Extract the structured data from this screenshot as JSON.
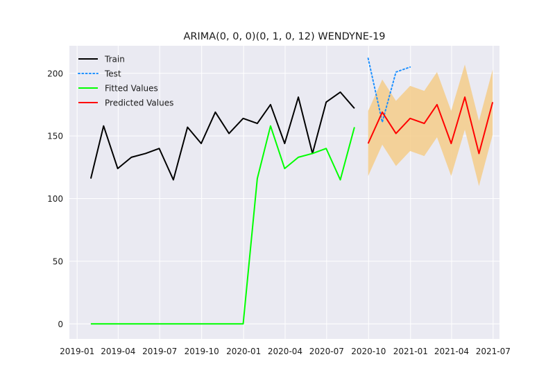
{
  "chart_data": {
    "type": "line",
    "title": "ARIMA(0, 0, 0)(0, 1, 0, 12) WENDYNE-19",
    "xlabel": "",
    "ylabel": "",
    "x_axis_type": "date",
    "xlim": [
      "2018-12-15",
      "2021-07-15"
    ],
    "ylim": [
      -12,
      222
    ],
    "xticks": [
      {
        "date": "2019-01-01",
        "label": "2019-01"
      },
      {
        "date": "2019-04-01",
        "label": "2019-04"
      },
      {
        "date": "2019-07-01",
        "label": "2019-07"
      },
      {
        "date": "2019-10-01",
        "label": "2019-10"
      },
      {
        "date": "2020-01-01",
        "label": "2020-01"
      },
      {
        "date": "2020-04-01",
        "label": "2020-04"
      },
      {
        "date": "2020-07-01",
        "label": "2020-07"
      },
      {
        "date": "2020-10-01",
        "label": "2020-10"
      },
      {
        "date": "2021-01-01",
        "label": "2021-01"
      },
      {
        "date": "2021-04-01",
        "label": "2021-04"
      },
      {
        "date": "2021-07-01",
        "label": "2021-07"
      }
    ],
    "yticks": [
      0,
      50,
      100,
      150,
      200
    ],
    "grid": true,
    "legend_position": "top-left",
    "background": "#eaeaf2",
    "series": [
      {
        "name": "Train",
        "color": "#000000",
        "style": "solid",
        "x": [
          "2019-01-31",
          "2019-02-28",
          "2019-03-31",
          "2019-04-30",
          "2019-05-31",
          "2019-06-30",
          "2019-07-31",
          "2019-08-31",
          "2019-09-30",
          "2019-10-31",
          "2019-11-30",
          "2019-12-31",
          "2020-01-31",
          "2020-02-29",
          "2020-03-31",
          "2020-04-30",
          "2020-05-31",
          "2020-06-30",
          "2020-07-31",
          "2020-08-31"
        ],
        "values": [
          116,
          158,
          124,
          133,
          136,
          140,
          115,
          157,
          144,
          169,
          152,
          164,
          160,
          175,
          144,
          181,
          136,
          177,
          185,
          172
        ]
      },
      {
        "name": "Test",
        "color": "#1e90ff",
        "style": "dotted",
        "x": [
          "2020-09-30",
          "2020-10-31",
          "2020-11-30",
          "2020-12-31"
        ],
        "values": [
          212,
          161,
          201,
          205
        ]
      },
      {
        "name": "Fitted Values",
        "color": "#00ff00",
        "style": "solid",
        "x": [
          "2019-01-31",
          "2019-02-28",
          "2019-03-31",
          "2019-04-30",
          "2019-05-31",
          "2019-06-30",
          "2019-07-31",
          "2019-08-31",
          "2019-09-30",
          "2019-10-31",
          "2019-11-30",
          "2019-12-31",
          "2020-01-31",
          "2020-02-29",
          "2020-03-31",
          "2020-04-30",
          "2020-05-31",
          "2020-06-30",
          "2020-07-31",
          "2020-08-31"
        ],
        "values": [
          0,
          0,
          0,
          0,
          0,
          0,
          0,
          0,
          0,
          0,
          0,
          0,
          116,
          158,
          124,
          133,
          136,
          140,
          115,
          157
        ]
      },
      {
        "name": "Predicted Values",
        "color": "#ff0000",
        "style": "solid",
        "x": [
          "2020-09-30",
          "2020-10-31",
          "2020-11-30",
          "2020-12-31",
          "2021-01-31",
          "2021-02-28",
          "2021-03-31",
          "2021-04-30",
          "2021-05-31",
          "2021-06-30"
        ],
        "values": [
          144,
          169,
          152,
          164,
          160,
          175,
          144,
          181,
          136,
          177
        ]
      }
    ],
    "confidence_band": {
      "color": "#f5cc8a",
      "x": [
        "2020-09-30",
        "2020-10-31",
        "2020-11-30",
        "2020-12-31",
        "2021-01-31",
        "2021-02-28",
        "2021-03-31",
        "2021-04-30",
        "2021-05-31",
        "2021-06-30"
      ],
      "lower": [
        118,
        143,
        126,
        138,
        134,
        149,
        118,
        155,
        110,
        151
      ],
      "upper": [
        170,
        195,
        178,
        190,
        186,
        201,
        170,
        207,
        162,
        203
      ]
    }
  }
}
